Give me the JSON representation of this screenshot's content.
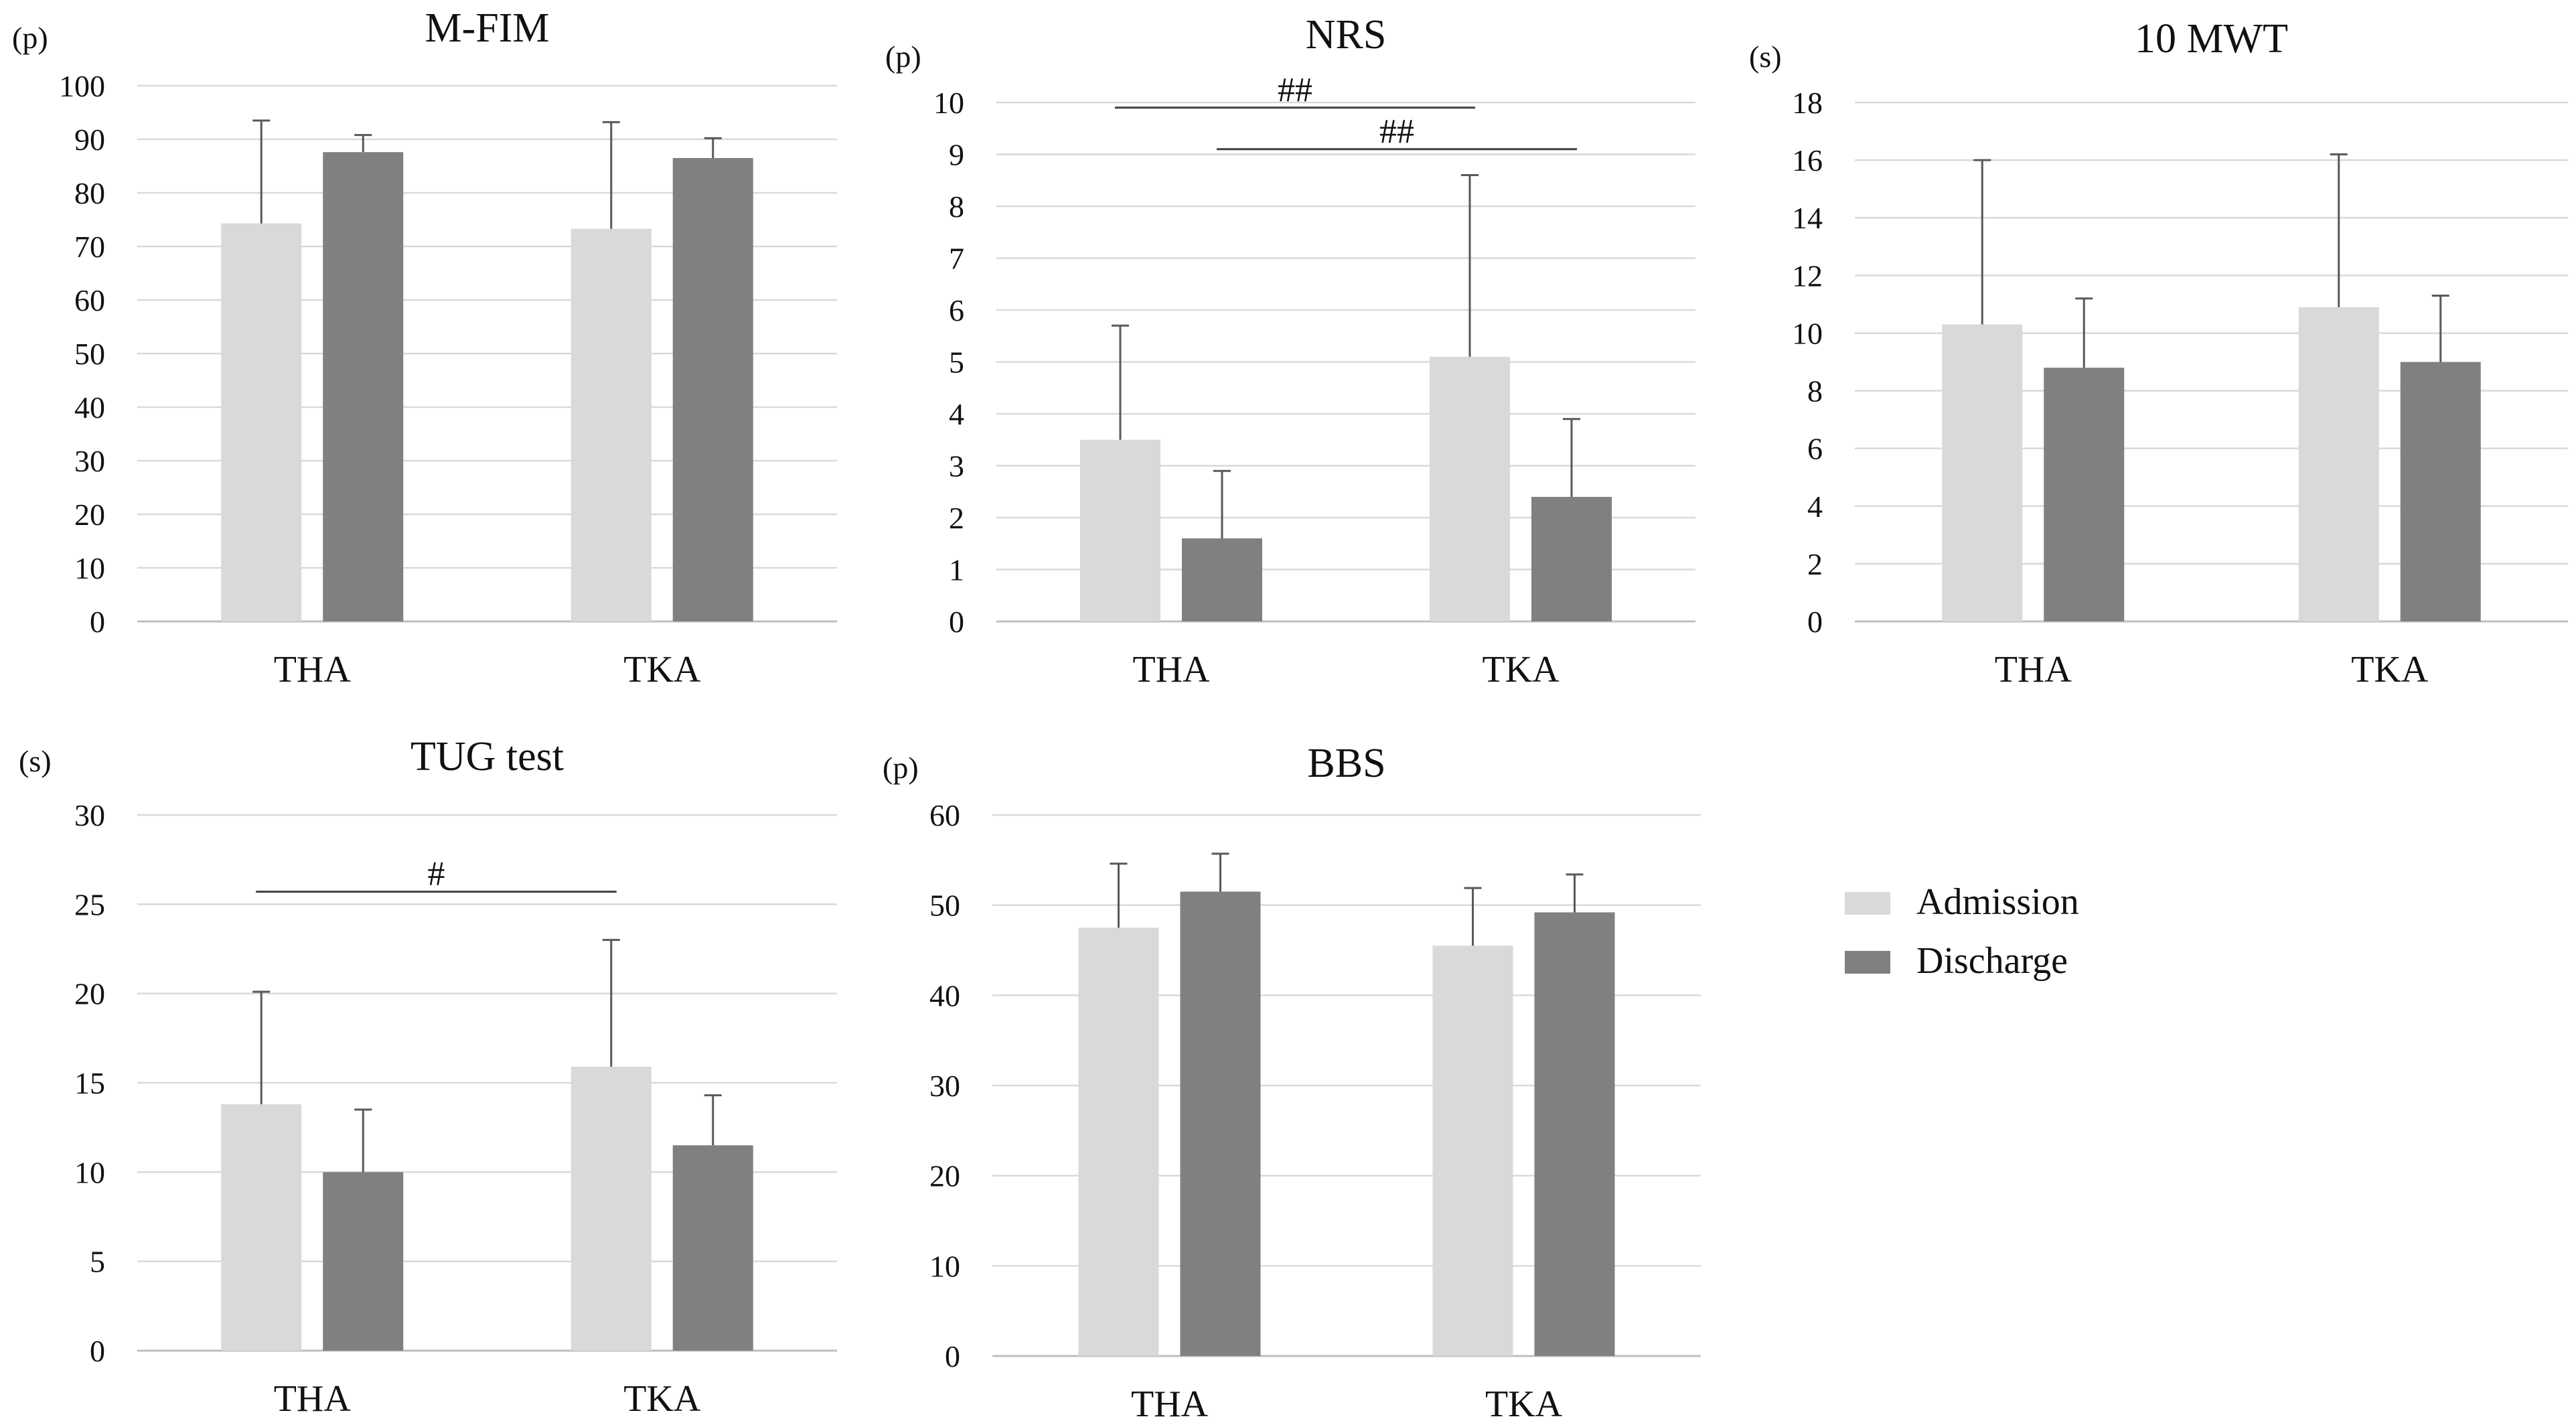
{
  "colors": {
    "admission": "#d9d9d9",
    "discharge": "#808080"
  },
  "legend": {
    "placement": "right",
    "items": [
      {
        "label": "Admission",
        "color": "#d9d9d9"
      },
      {
        "label": "Discharge",
        "color": "#808080"
      }
    ]
  },
  "chart_data": [
    {
      "type": "bar",
      "title": "M-FIM",
      "unit": "(p)",
      "categories": [
        "THA",
        "TKA"
      ],
      "ylim": [
        0,
        100
      ],
      "yticks": [
        0,
        10,
        20,
        30,
        40,
        50,
        60,
        70,
        80,
        90,
        100
      ],
      "series": [
        {
          "name": "Admission",
          "values": [
            74.3,
            73.3
          ],
          "error_upper": [
            93.5,
            93.2
          ]
        },
        {
          "name": "Discharge",
          "values": [
            87.6,
            86.5
          ],
          "error_upper": [
            90.8,
            90.2
          ]
        }
      ],
      "annotations": []
    },
    {
      "type": "bar",
      "title": "NRS",
      "unit": "(p)",
      "categories": [
        "THA",
        "TKA"
      ],
      "ylim": [
        0,
        10
      ],
      "yticks": [
        0,
        1,
        2,
        3,
        4,
        5,
        6,
        7,
        8,
        9,
        10
      ],
      "series": [
        {
          "name": "Admission",
          "values": [
            3.5,
            5.1
          ],
          "error_upper": [
            5.7,
            8.6
          ]
        },
        {
          "name": "Discharge",
          "values": [
            1.6,
            2.4
          ],
          "error_upper": [
            2.9,
            3.9
          ]
        }
      ],
      "annotations": [
        {
          "label": "##",
          "value": 9.9,
          "from": [
            0,
            "Admission"
          ],
          "to": [
            1,
            "Admission"
          ]
        },
        {
          "label": "##",
          "value": 9.1,
          "from": [
            0,
            "Discharge"
          ],
          "to": [
            1,
            "Discharge"
          ]
        }
      ]
    },
    {
      "type": "bar",
      "title": "10 MWT",
      "unit": "(s)",
      "categories": [
        "THA",
        "TKA"
      ],
      "ylim": [
        0,
        18
      ],
      "yticks": [
        0,
        2,
        4,
        6,
        8,
        10,
        12,
        14,
        16,
        18
      ],
      "series": [
        {
          "name": "Admission",
          "values": [
            10.3,
            10.9
          ],
          "error_upper": [
            16.0,
            16.2
          ]
        },
        {
          "name": "Discharge",
          "values": [
            8.8,
            9.0
          ],
          "error_upper": [
            11.2,
            11.3
          ]
        }
      ],
      "annotations": []
    },
    {
      "type": "bar",
      "title": "TUG test",
      "unit": "(s)",
      "categories": [
        "THA",
        "TKA"
      ],
      "ylim": [
        0,
        30
      ],
      "yticks": [
        0,
        5,
        10,
        15,
        20,
        25,
        30
      ],
      "series": [
        {
          "name": "Admission",
          "values": [
            13.8,
            15.9
          ],
          "error_upper": [
            20.1,
            23.0
          ]
        },
        {
          "name": "Discharge",
          "values": [
            10.0,
            11.5
          ],
          "error_upper": [
            13.5,
            14.3
          ]
        }
      ],
      "annotations": [
        {
          "label": "#",
          "value": 25.7,
          "from": [
            0,
            "Admission"
          ],
          "to": [
            1,
            "Admission"
          ]
        }
      ]
    },
    {
      "type": "bar",
      "title": "BBS",
      "unit": "(p)",
      "categories": [
        "THA",
        "TKA"
      ],
      "ylim": [
        0,
        60
      ],
      "yticks": [
        0,
        10,
        20,
        30,
        40,
        50,
        60
      ],
      "series": [
        {
          "name": "Admission",
          "values": [
            47.5,
            45.5
          ],
          "error_upper": [
            54.6,
            51.9
          ]
        },
        {
          "name": "Discharge",
          "values": [
            51.5,
            49.2
          ],
          "error_upper": [
            55.7,
            53.4
          ]
        }
      ],
      "annotations": []
    }
  ]
}
